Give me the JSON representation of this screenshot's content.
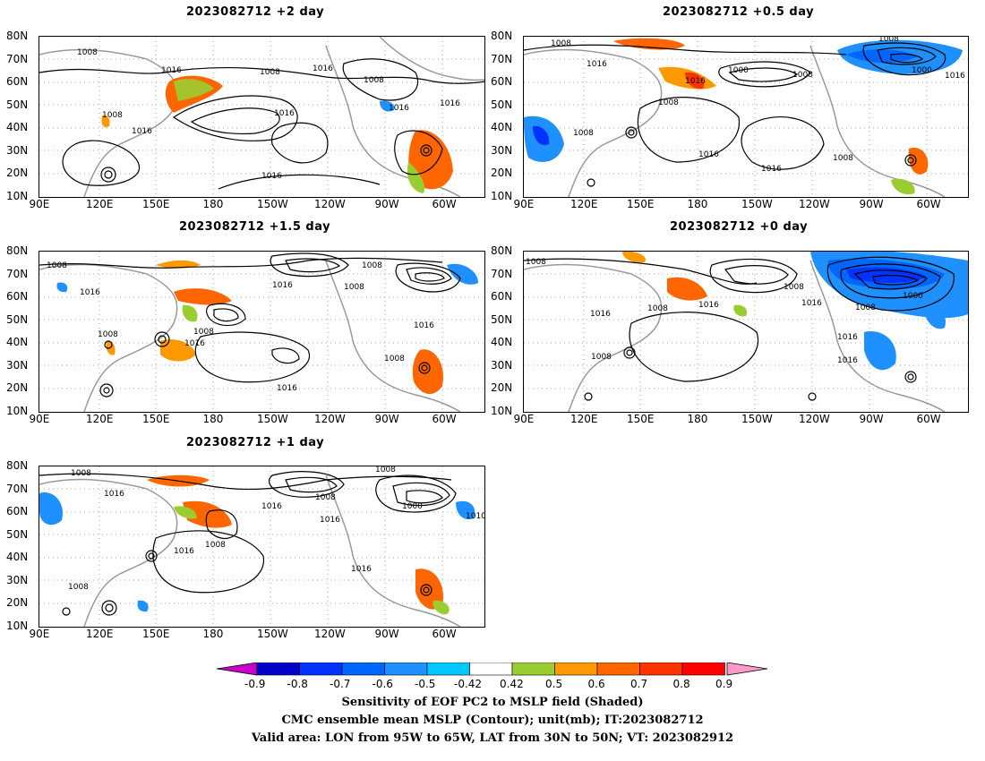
{
  "panels": [
    {
      "id": "p2",
      "title": "2023082712  +2 day"
    },
    {
      "id": "p05",
      "title": "2023082712  +0.5 day"
    },
    {
      "id": "p15",
      "title": "2023082712  +1.5 day"
    },
    {
      "id": "p0",
      "title": "2023082712  +0 day"
    },
    {
      "id": "p1",
      "title": "2023082712  +1 day"
    }
  ],
  "axes": {
    "lat_labels": [
      "80N",
      "70N",
      "60N",
      "50N",
      "40N",
      "30N",
      "20N",
      "10N"
    ],
    "lon_labels": [
      "90E",
      "120E",
      "150E",
      "180",
      "150W",
      "120W",
      "90W",
      "60W"
    ]
  },
  "contour_labels": [
    "1008",
    "1016",
    "1000",
    "1010"
  ],
  "colorbar": {
    "ticks": [
      "-0.9",
      "-0.8",
      "-0.7",
      "-0.6",
      "-0.5",
      "-0.42",
      "0.42",
      "0.5",
      "0.6",
      "0.7",
      "0.8",
      "0.9"
    ],
    "colors": [
      "#0000c8",
      "#0033ff",
      "#0066ff",
      "#1e90ff",
      "#00c8ff",
      "#ffffff",
      "#9acd32",
      "#ff9900",
      "#ff6600",
      "#ff3300",
      "#ff0000"
    ],
    "low_extend_color": "#c800c8",
    "high_extend_color": "#ff99cc"
  },
  "caption": {
    "line1": "Sensitivity of EOF PC2 to MSLP field (Shaded)",
    "line2": "CMC ensemble mean MSLP (Contour); unit(mb); IT:2023082712",
    "line3": "Valid area: LON from 95W to 65W, LAT from 30N to 50N; VT: 2023082912"
  }
}
